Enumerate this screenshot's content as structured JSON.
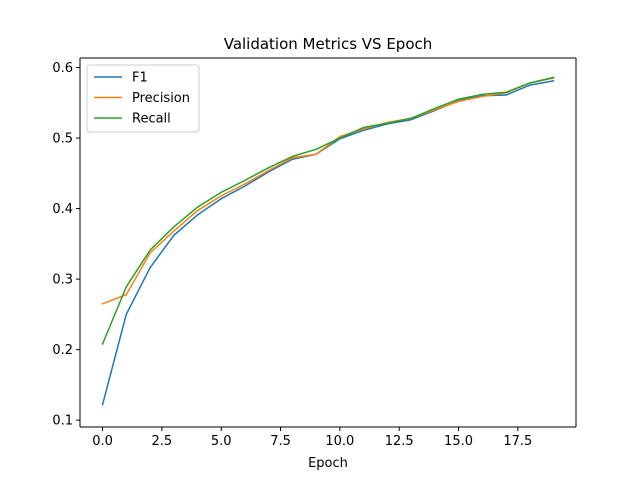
{
  "chart_data": {
    "type": "line",
    "title": "Validation Metrics VS Epoch",
    "xlabel": "Epoch",
    "ylabel": "",
    "xlim": [
      -0.95,
      19.95
    ],
    "ylim": [
      0.0903,
      0.6135
    ],
    "xticks": [
      0.0,
      2.5,
      5.0,
      7.5,
      10.0,
      12.5,
      15.0,
      17.5
    ],
    "xtick_labels": [
      "0.0",
      "2.5",
      "5.0",
      "7.5",
      "10.0",
      "12.5",
      "15.0",
      "17.5"
    ],
    "yticks": [
      0.1,
      0.2,
      0.3,
      0.4,
      0.5,
      0.6
    ],
    "ytick_labels": [
      "0.1",
      "0.2",
      "0.3",
      "0.4",
      "0.5",
      "0.6"
    ],
    "grid": false,
    "legend": {
      "position": "upper-left"
    },
    "x": [
      0,
      1,
      2,
      3,
      4,
      5,
      6,
      7,
      8,
      9,
      10,
      11,
      12,
      13,
      14,
      15,
      16,
      17,
      18,
      19
    ],
    "series": [
      {
        "name": "F1",
        "color": "#1f77b4",
        "values": [
          0.122,
          0.25,
          0.316,
          0.362,
          0.391,
          0.414,
          0.432,
          0.452,
          0.47,
          0.477,
          0.499,
          0.511,
          0.52,
          0.526,
          0.539,
          0.553,
          0.56,
          0.561,
          0.575,
          0.581
        ]
      },
      {
        "name": "Precision",
        "color": "#ff7f0e",
        "values": [
          0.265,
          0.278,
          0.337,
          0.368,
          0.397,
          0.418,
          0.435,
          0.454,
          0.472,
          0.477,
          0.502,
          0.513,
          0.522,
          0.528,
          0.54,
          0.552,
          0.559,
          0.564,
          0.578,
          0.585
        ]
      },
      {
        "name": "Recall",
        "color": "#2ca02c",
        "values": [
          0.208,
          0.289,
          0.341,
          0.374,
          0.402,
          0.423,
          0.44,
          0.458,
          0.474,
          0.484,
          0.5,
          0.515,
          0.521,
          0.528,
          0.542,
          0.555,
          0.562,
          0.565,
          0.578,
          0.586
        ]
      }
    ]
  }
}
